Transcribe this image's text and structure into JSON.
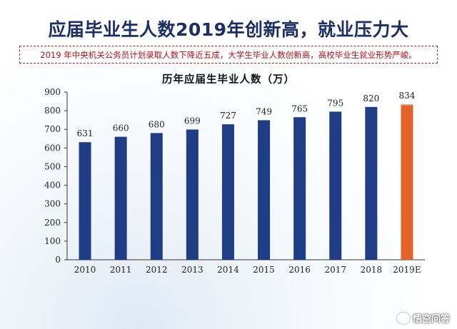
{
  "header": {
    "title": "应届毕业生人数2019年创新高，就业压力大",
    "subtitle": "2019 年中央机关公务员计划录取人数下降近五成，大学生毕业人数创新高，高校毕业生就业形势严峻。"
  },
  "watermark": {
    "text": "悟空问答"
  },
  "colors": {
    "primary_bar": "#1f3d84",
    "highlight_bar": "#e2622a",
    "title": "#1b2f67",
    "subtitle": "#b3101a"
  },
  "chart_data": {
    "type": "bar",
    "title": "历年应届生毕业人数（万）",
    "categories": [
      "2010",
      "2011",
      "2012",
      "2013",
      "2014",
      "2015",
      "2016",
      "2017",
      "2018",
      "2019E"
    ],
    "values": [
      631,
      660,
      680,
      699,
      727,
      749,
      765,
      795,
      820,
      834
    ],
    "highlight_index": 9,
    "xlabel": "",
    "ylabel": "",
    "ylim": [
      0,
      900
    ],
    "yticks": [
      0,
      100,
      200,
      300,
      400,
      500,
      600,
      700,
      800,
      900
    ],
    "grid": false,
    "legend": "none"
  }
}
